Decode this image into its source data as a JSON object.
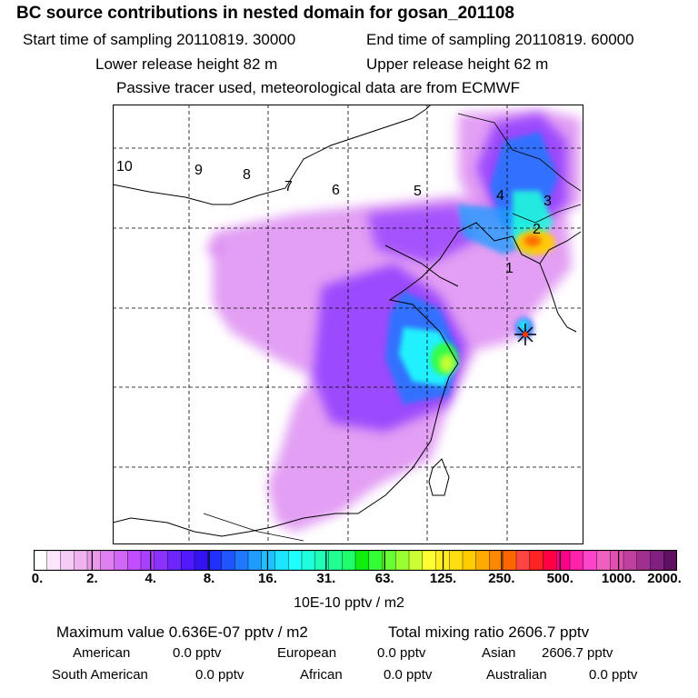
{
  "header": {
    "title": "BC  source contributions in nested domain for gosan_201108",
    "start_time": "Start time of sampling 20110819. 30000",
    "end_time": "End time of sampling 20110819. 60000",
    "lower_height": "Lower release height   82 m",
    "upper_height": "Upper release height   62 m",
    "note": "Passive tracer used, meteorological data are from ECMWF"
  },
  "map": {
    "receptor_icon": "asterisk-receptor-icon",
    "region_labels": [
      "1",
      "2",
      "3",
      "4",
      "5",
      "6",
      "7",
      "8",
      "9",
      "10"
    ]
  },
  "colorbar": {
    "tick_labels": [
      "0.",
      "2.",
      "4.",
      "8.",
      "16.",
      "31.",
      "63.",
      "125.",
      "250.",
      "500.",
      "1000.",
      "2000."
    ],
    "unit": "10E-10 pptv / m2",
    "colors": [
      "#ffffff",
      "#fbe6fb",
      "#f6ccf6",
      "#f0b3f0",
      "#e89ae8",
      "#e080f0",
      "#d066f4",
      "#c24dff",
      "#a840ff",
      "#8a33ff",
      "#6d26ff",
      "#5019ff",
      "#3314f0",
      "#2030ff",
      "#1f54ff",
      "#1f78ff",
      "#1f9cff",
      "#1fc0ff",
      "#1fe4ff",
      "#1fffff",
      "#1fffdb",
      "#1fffb6",
      "#1fff92",
      "#1fff6d",
      "#10ee10",
      "#33ff33",
      "#66ff33",
      "#99ff33",
      "#ccff33",
      "#ffff33",
      "#ffee22",
      "#ffdd11",
      "#ffcc00",
      "#ffaa00",
      "#ff8800",
      "#ff6600",
      "#ff4444",
      "#ff2222",
      "#ff0044",
      "#ff0088",
      "#ff22aa",
      "#ff44cc",
      "#f060c0",
      "#e050b0",
      "#c040a0",
      "#a03090",
      "#802080",
      "#601060"
    ]
  },
  "stats": {
    "maximum": "Maximum value  0.636E-07 pptv / m2",
    "total": "Total mixing ratio     2606.7 pptv",
    "american_label": "American",
    "american_value": "0.0 pptv",
    "european_label": "European",
    "european_value": "0.0 pptv",
    "asian_label": "Asian",
    "asian_value": "2606.7 pptv",
    "south_american_label": "South American",
    "south_american_value": "0.0 pptv",
    "african_label": "African",
    "african_value": "0.0 pptv",
    "australian_label": "Australian",
    "australian_value": "0.0 pptv"
  }
}
